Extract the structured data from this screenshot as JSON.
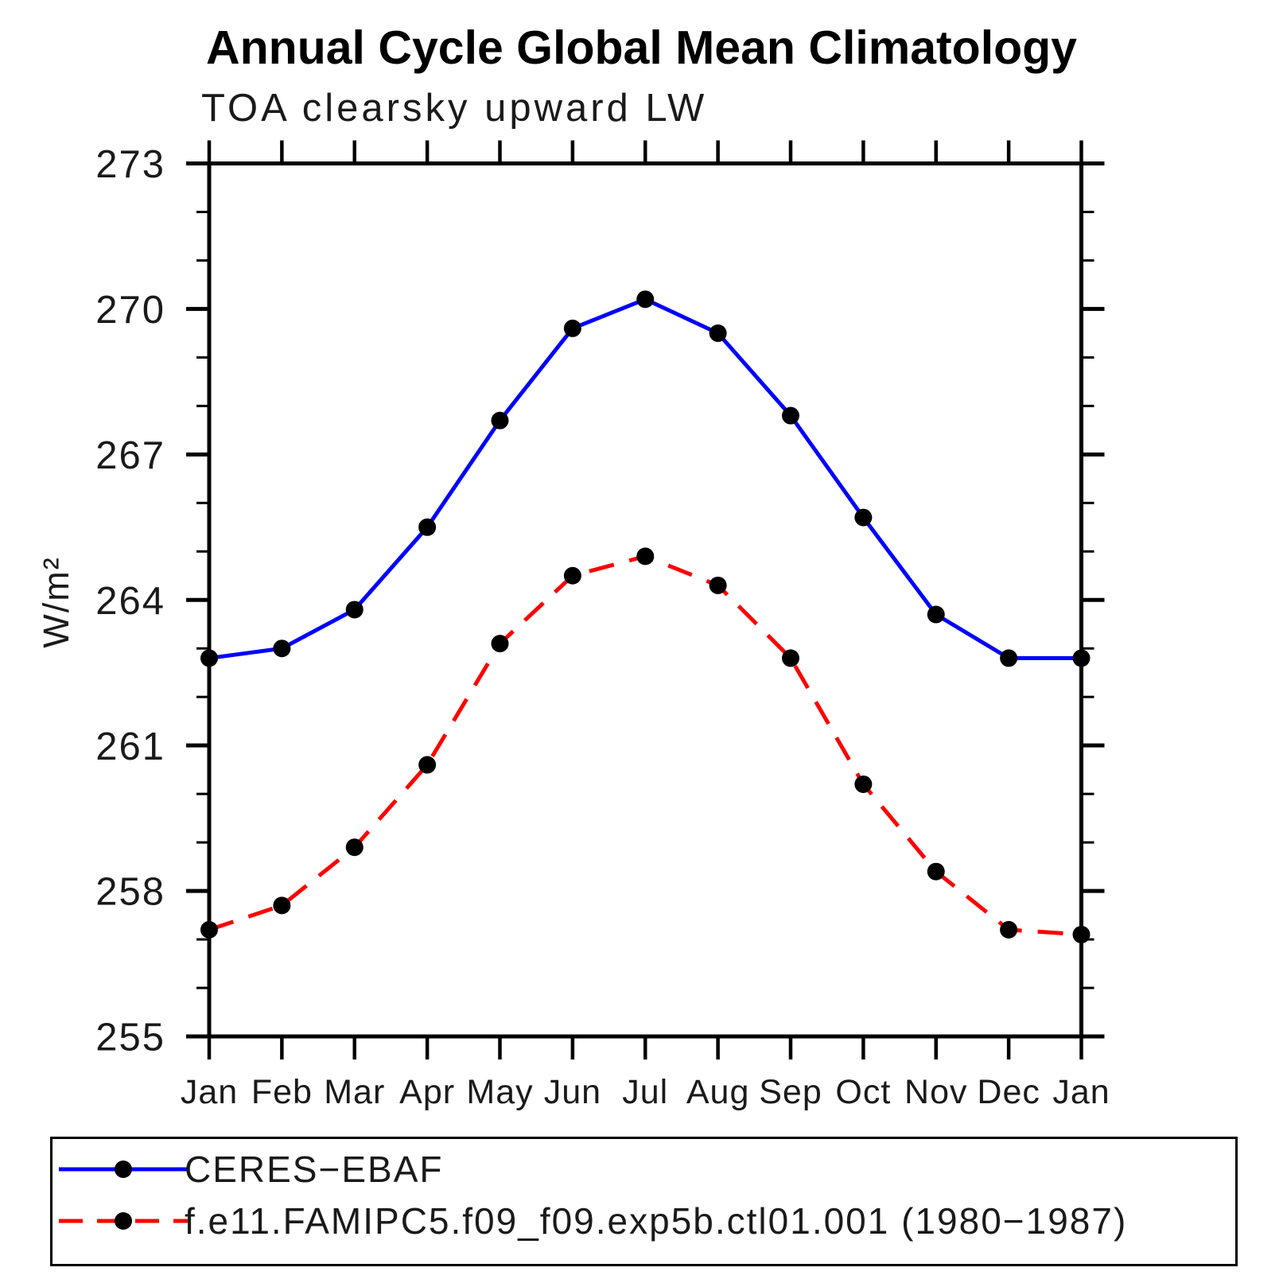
{
  "figure": {
    "title": "Annual Cycle Global Mean Climatology",
    "subtitle": "TOA clearsky upward LW"
  },
  "chart_data": {
    "type": "line",
    "title": "Annual Cycle Global Mean Climatology",
    "subtitle": "TOA clearsky upward LW",
    "xlabel": "",
    "ylabel": "W/m²",
    "categories": [
      "Jan",
      "Feb",
      "Mar",
      "Apr",
      "May",
      "Jun",
      "Jul",
      "Aug",
      "Sep",
      "Oct",
      "Nov",
      "Dec",
      "Jan"
    ],
    "y_axis": {
      "min": 255,
      "max": 273,
      "major_step": 3,
      "minor_step": 1,
      "tick_labels": [
        "255",
        "258",
        "261",
        "264",
        "267",
        "270",
        "273"
      ]
    },
    "grid": "off",
    "legend_position": "bottom",
    "marker_color": "#000000",
    "series": [
      {
        "name": "CERES−EBAF",
        "color": "#0000ff",
        "line_style": "solid",
        "marker": "circle",
        "values": [
          262.8,
          263.0,
          263.8,
          265.5,
          267.7,
          269.6,
          270.2,
          269.5,
          267.8,
          265.7,
          263.7,
          262.8,
          262.8
        ]
      },
      {
        "name": "f.e11.FAMIPC5.f09_f09.exp5b.ctl01.001 (1980−1987)",
        "color": "#ff0000",
        "line_style": "dashed",
        "marker": "circle",
        "values": [
          257.2,
          257.7,
          258.9,
          260.6,
          263.1,
          264.5,
          264.9,
          264.3,
          262.8,
          260.2,
          258.4,
          257.2,
          257.1
        ]
      }
    ]
  }
}
